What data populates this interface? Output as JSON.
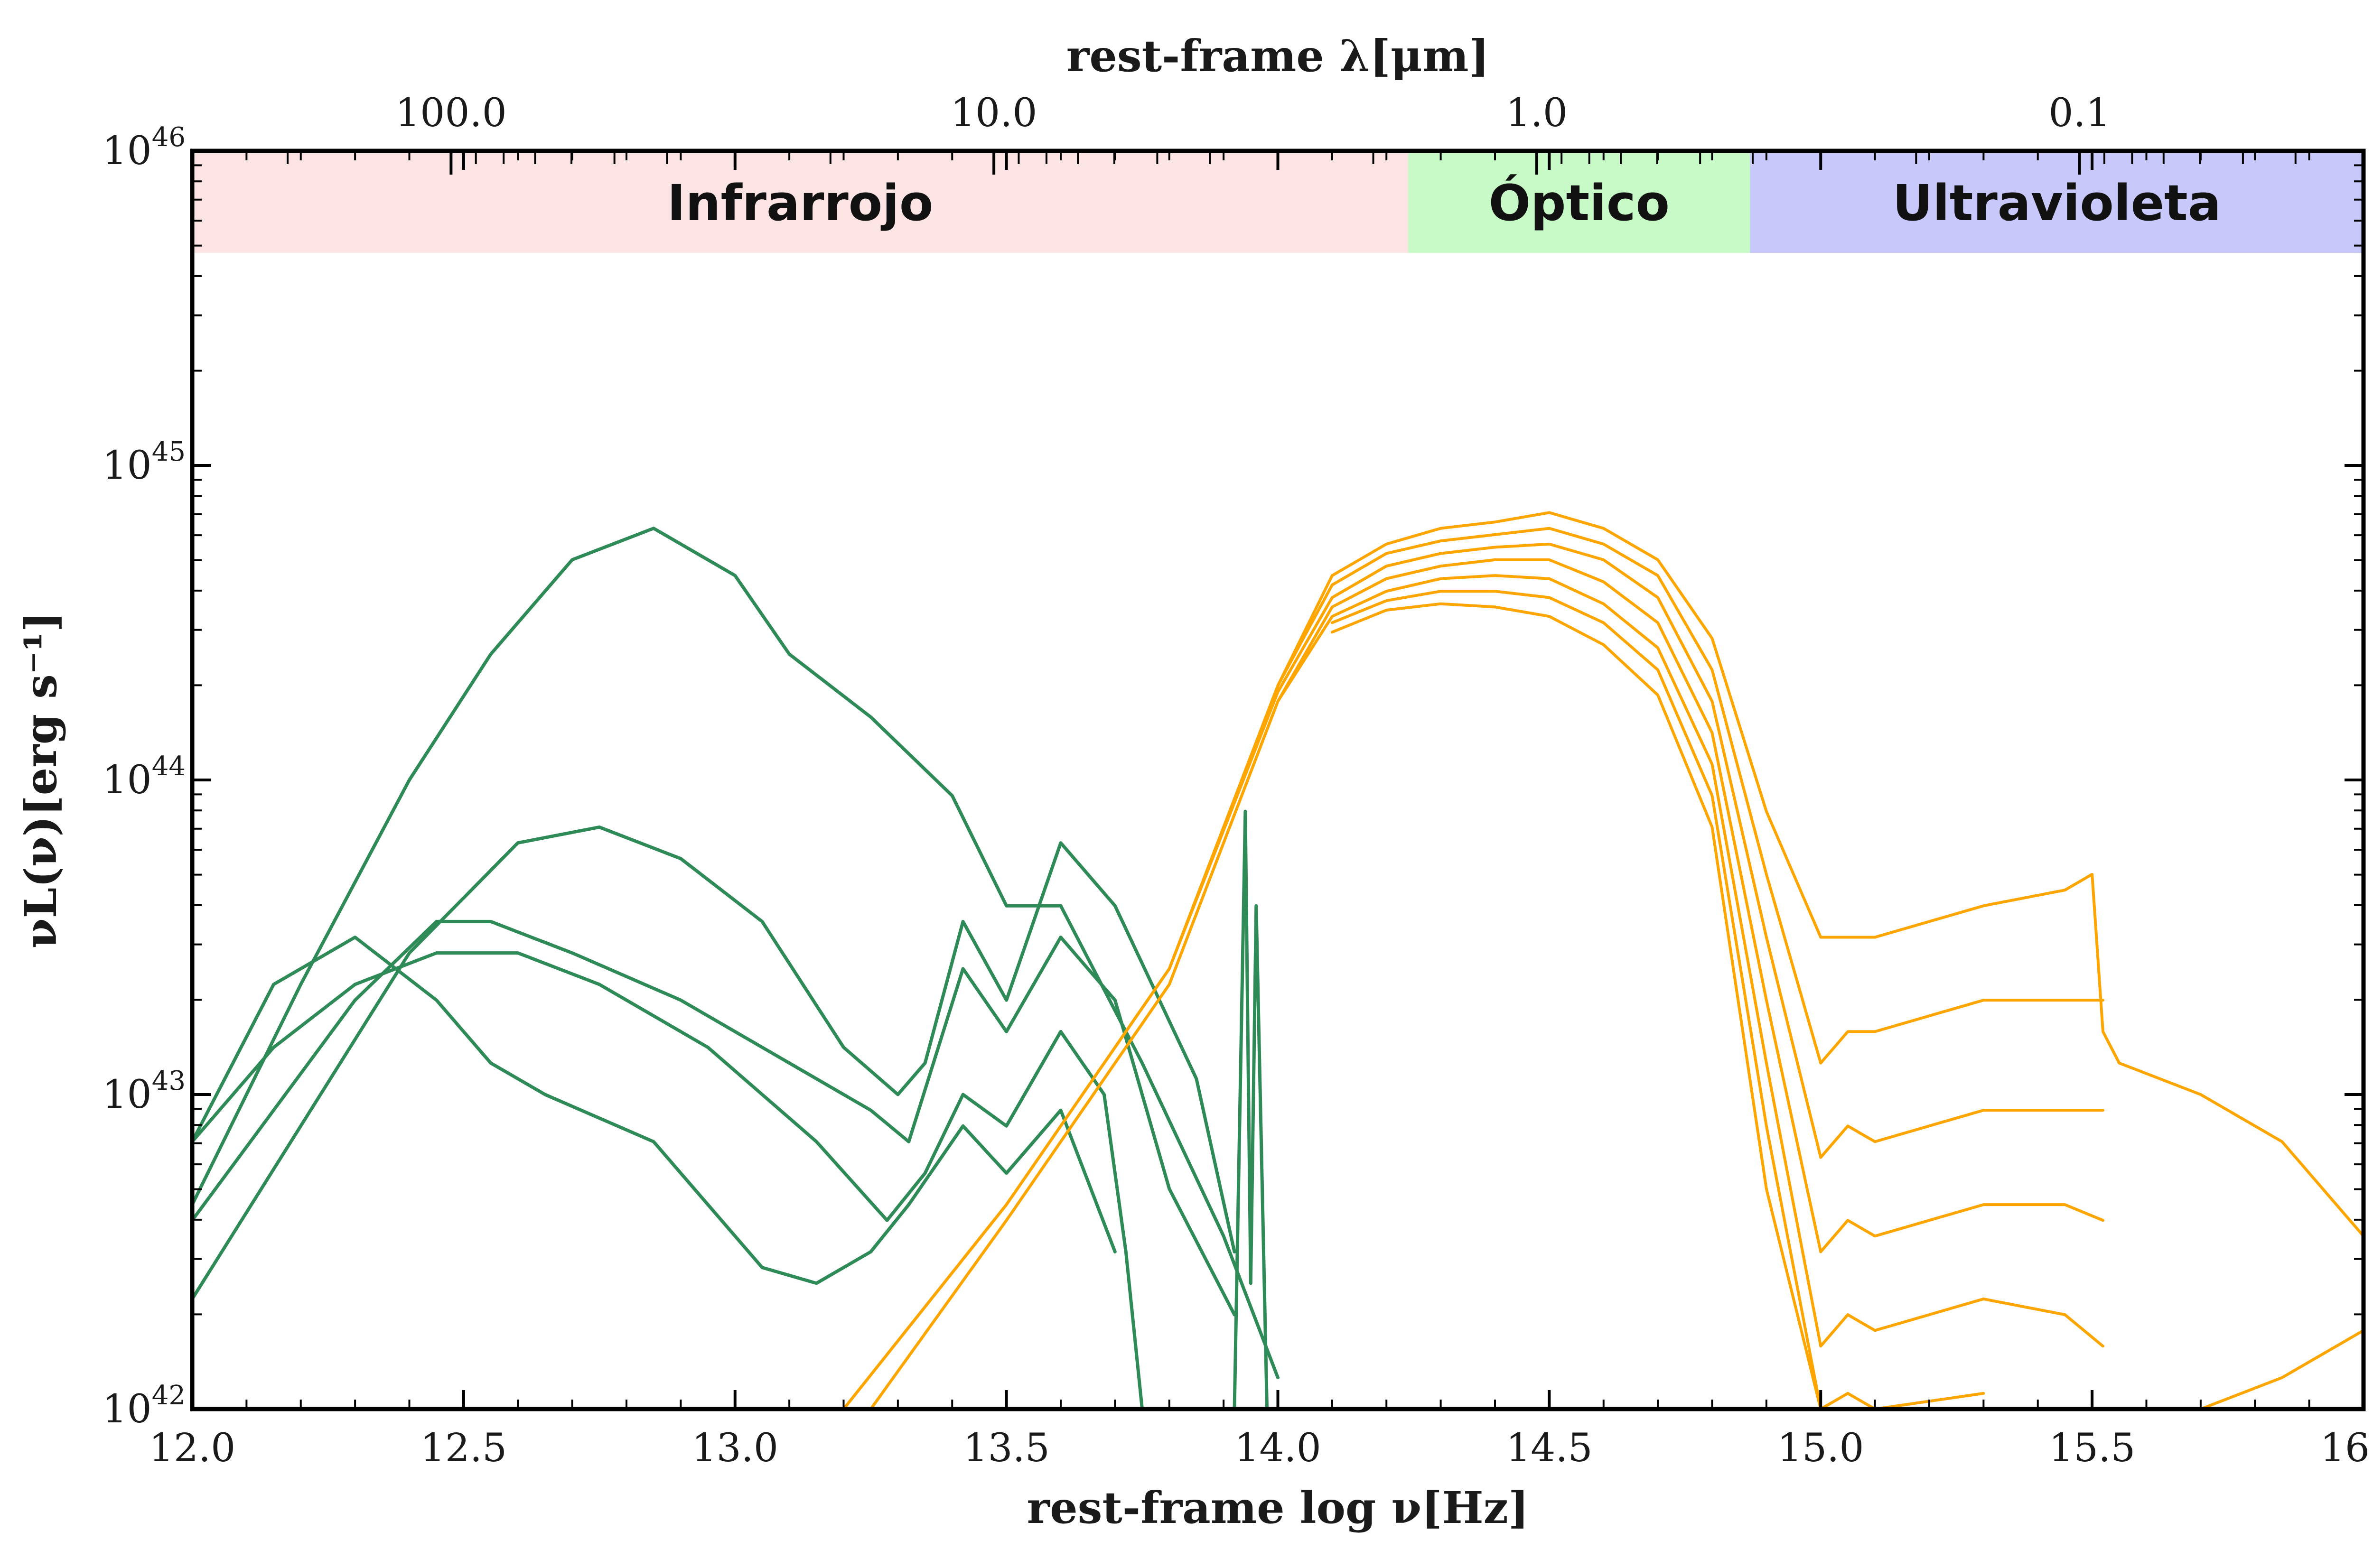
{
  "chart_data": {
    "type": "line",
    "xlabel": "rest-frame log ν[Hz]",
    "ylabel": "νL(ν)[erg s⁻¹]",
    "top_xlabel": "rest-frame λ[μm]",
    "xlim": [
      12.0,
      16.0
    ],
    "ylim_log10": [
      42,
      46
    ],
    "x_ticks": [
      "12.0",
      "12.5",
      "13.0",
      "13.5",
      "14.0",
      "14.5",
      "15.0",
      "15.5",
      "16.0"
    ],
    "y_ticks": [
      {
        "base": "10",
        "exp": "46"
      },
      {
        "base": "10",
        "exp": "45"
      },
      {
        "base": "10",
        "exp": "44"
      },
      {
        "base": "10",
        "exp": "43"
      },
      {
        "base": "10",
        "exp": "42"
      }
    ],
    "top_ticks": [
      "100.0",
      "10.0",
      "1.0",
      "0.1"
    ],
    "grid": false,
    "bands": [
      {
        "label": "Infrarrojo",
        "x_start": 12.0,
        "x_end": 14.24,
        "color": "#fde4e4"
      },
      {
        "label": "Óptico",
        "x_start": 14.24,
        "x_end": 14.87,
        "color": "#c8fac8"
      },
      {
        "label": "Ultravioleta",
        "x_start": 14.87,
        "x_end": 16.0,
        "color": "#c8c8fa"
      }
    ],
    "colors": {
      "dust": "#2e8b57",
      "stellar": "#ffa500",
      "axis": "#000000"
    },
    "dust_series": [
      {
        "x": [
          12.0,
          12.2,
          12.4,
          12.55,
          12.7,
          12.85,
          13.0,
          13.1,
          13.25,
          13.4,
          13.5,
          13.6,
          13.75,
          13.9,
          14.0
        ],
        "logL": [
          42.65,
          43.35,
          44.0,
          44.4,
          44.7,
          44.8,
          44.65,
          44.4,
          44.2,
          43.95,
          43.6,
          43.6,
          43.1,
          42.55,
          42.1
        ]
      },
      {
        "x": [
          12.0,
          12.2,
          12.4,
          12.6,
          12.75,
          12.9,
          13.05,
          13.2,
          13.3,
          13.35,
          13.42,
          13.5,
          13.6,
          13.7,
          13.85,
          13.92
        ],
        "logL": [
          42.35,
          42.9,
          43.45,
          43.8,
          43.85,
          43.75,
          43.55,
          43.15,
          43.0,
          43.1,
          43.55,
          43.3,
          43.8,
          43.6,
          43.05,
          42.5
        ]
      },
      {
        "x": [
          12.0,
          12.15,
          12.3,
          12.45,
          12.55,
          12.7,
          12.9,
          13.1,
          13.25,
          13.32,
          13.42,
          13.5,
          13.6,
          13.7,
          13.8,
          13.92
        ],
        "logL": [
          42.6,
          42.95,
          43.3,
          43.55,
          43.55,
          43.45,
          43.3,
          43.1,
          42.95,
          42.85,
          43.4,
          43.2,
          43.5,
          43.3,
          42.7,
          42.3
        ]
      },
      {
        "x": [
          12.0,
          12.15,
          12.3,
          12.45,
          12.6,
          12.75,
          12.95,
          13.15,
          13.28,
          13.35,
          13.42,
          13.5,
          13.6,
          13.68,
          13.72,
          13.75
        ],
        "logL": [
          42.85,
          43.15,
          43.35,
          43.45,
          43.45,
          43.35,
          43.15,
          42.85,
          42.6,
          42.75,
          43.0,
          42.9,
          43.2,
          43.0,
          42.5,
          42.0
        ]
      },
      {
        "x": [
          12.0,
          12.15,
          12.3,
          12.45,
          12.55,
          12.65,
          12.85,
          13.05,
          13.15,
          13.25,
          13.32,
          13.42,
          13.5,
          13.6,
          13.7
        ],
        "logL": [
          42.85,
          43.35,
          43.5,
          43.3,
          43.1,
          43.0,
          42.85,
          42.45,
          42.4,
          42.5,
          42.65,
          42.9,
          42.75,
          42.95,
          42.5
        ]
      }
    ],
    "dust_spike": {
      "x": [
        13.92,
        13.94,
        13.95,
        13.96,
        13.98
      ],
      "logL": [
        42.0,
        43.9,
        42.4,
        43.6,
        42.0
      ]
    },
    "stellar_series": [
      {
        "x": [
          13.2,
          13.5,
          13.8,
          14.0,
          14.1,
          14.2,
          14.3,
          14.4,
          14.5,
          14.6,
          14.7,
          14.8,
          14.9,
          15.0,
          15.05,
          15.1,
          15.3,
          15.45,
          15.5,
          15.52,
          15.55,
          15.7,
          15.85,
          16.0
        ],
        "logL": [
          42.0,
          42.65,
          43.4,
          44.3,
          44.65,
          44.75,
          44.8,
          44.82,
          44.85,
          44.8,
          44.7,
          44.45,
          43.9,
          43.5,
          43.5,
          43.5,
          43.6,
          43.65,
          43.7,
          43.2,
          43.1,
          43.0,
          42.85,
          42.55
        ]
      },
      {
        "x": [
          13.2,
          13.5,
          13.8,
          14.0,
          14.1,
          14.2,
          14.3,
          14.4,
          14.5,
          14.6,
          14.7,
          14.8,
          14.9,
          15.0,
          15.05,
          15.1,
          15.3,
          15.45,
          15.52
        ],
        "logL": [
          42.0,
          42.65,
          43.4,
          44.3,
          44.62,
          44.72,
          44.76,
          44.78,
          44.8,
          44.75,
          44.65,
          44.35,
          43.7,
          43.1,
          43.2,
          43.2,
          43.3,
          43.3,
          43.3
        ]
      },
      {
        "x": [
          13.2,
          13.5,
          13.8,
          14.0,
          14.1,
          14.2,
          14.3,
          14.4,
          14.5,
          14.6,
          14.7,
          14.8,
          14.9,
          15.0,
          15.05,
          15.1,
          15.3,
          15.45,
          15.52
        ],
        "logL": [
          42.0,
          42.65,
          43.4,
          44.28,
          44.58,
          44.68,
          44.72,
          44.74,
          44.75,
          44.7,
          44.58,
          44.25,
          43.5,
          42.8,
          42.9,
          42.85,
          42.95,
          42.95,
          42.95
        ]
      },
      {
        "x": [
          13.25,
          13.5,
          13.8,
          14.0,
          14.1,
          14.2,
          14.3,
          14.4,
          14.5,
          14.6,
          14.7,
          14.8,
          14.9,
          15.0,
          15.05,
          15.1,
          15.3,
          15.45,
          15.52
        ],
        "logL": [
          42.0,
          42.6,
          43.35,
          44.25,
          44.55,
          44.64,
          44.68,
          44.7,
          44.7,
          44.63,
          44.5,
          44.15,
          43.3,
          42.5,
          42.6,
          42.55,
          42.65,
          42.65,
          42.6
        ]
      },
      {
        "x": [
          13.25,
          13.5,
          13.8,
          14.0,
          14.1,
          14.2,
          14.3,
          14.4,
          14.5,
          14.6,
          14.7,
          14.8,
          14.9,
          15.0,
          15.05,
          15.1,
          15.3,
          15.45,
          15.52
        ],
        "logL": [
          42.0,
          42.6,
          43.35,
          44.25,
          44.52,
          44.6,
          44.64,
          44.65,
          44.64,
          44.56,
          44.42,
          44.05,
          43.1,
          42.2,
          42.3,
          42.25,
          42.35,
          42.3,
          42.2
        ]
      },
      {
        "x": [
          14.1,
          14.2,
          14.3,
          14.4,
          14.5,
          14.6,
          14.7,
          14.8,
          14.9,
          15.0,
          15.05,
          15.1,
          15.3
        ],
        "logL": [
          44.5,
          44.57,
          44.6,
          44.6,
          44.58,
          44.5,
          44.35,
          43.95,
          42.9,
          42.0,
          42.05,
          42.0,
          42.05
        ]
      },
      {
        "x": [
          14.1,
          14.2,
          14.3,
          14.4,
          14.5,
          14.6,
          14.7,
          14.8,
          14.9,
          15.0
        ],
        "logL": [
          44.47,
          44.54,
          44.56,
          44.55,
          44.52,
          44.43,
          44.27,
          43.85,
          42.7,
          42.0
        ]
      },
      {
        "x": [
          15.7,
          15.85,
          16.0
        ],
        "logL": [
          42.0,
          42.1,
          42.25
        ]
      }
    ]
  }
}
